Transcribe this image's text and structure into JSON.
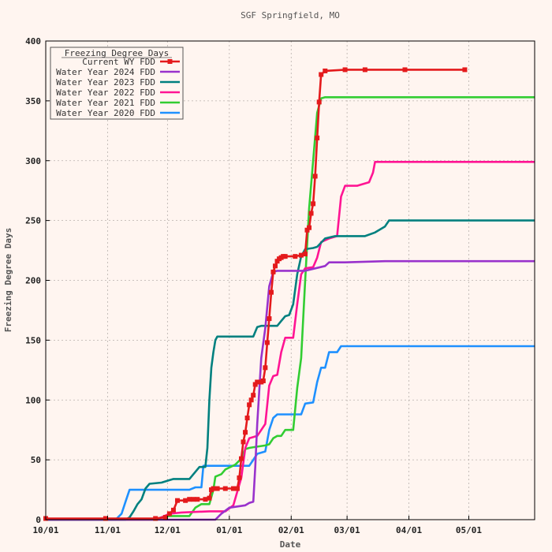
{
  "chart_data": {
    "type": "line",
    "title": "SGF Springfield, MO",
    "xlabel": "Date",
    "ylabel": "Freezing Degree Days",
    "ylim": [
      0,
      400
    ],
    "yticks": [
      "0",
      "50",
      "100",
      "150",
      "200",
      "250",
      "300",
      "350",
      "400"
    ],
    "xlim": [
      "10/01",
      "12/31 of Jun end"
    ],
    "x_unit": "date (water year day, 10/01 = day 0)",
    "xticks": [
      {
        "label": "10/01",
        "day": 0
      },
      {
        "label": "11/01",
        "day": 31
      },
      {
        "label": "12/01",
        "day": 61
      },
      {
        "label": "01/01",
        "day": 92
      },
      {
        "label": "02/01",
        "day": 123
      },
      {
        "label": "03/01",
        "day": 151
      },
      {
        "label": "04/01",
        "day": 182
      },
      {
        "label": "05/01",
        "day": 212
      }
    ],
    "x_max_day": 245,
    "grid": true,
    "legend": {
      "title": "Freezing Degree Days",
      "placement": "top-left"
    },
    "series": [
      {
        "name": "Current WY FDD",
        "color": "#e41a1c",
        "markers": true,
        "points": [
          [
            0,
            1
          ],
          [
            30,
            1
          ],
          [
            55,
            1
          ],
          [
            60,
            2
          ],
          [
            62,
            5
          ],
          [
            64,
            8
          ],
          [
            66,
            16
          ],
          [
            70,
            16
          ],
          [
            72,
            17
          ],
          [
            74,
            17
          ],
          [
            76,
            17
          ],
          [
            80,
            17
          ],
          [
            82,
            18
          ],
          [
            83,
            25
          ],
          [
            84,
            26
          ],
          [
            86,
            26
          ],
          [
            90,
            26
          ],
          [
            94,
            26
          ],
          [
            96,
            26
          ],
          [
            97,
            35
          ],
          [
            98,
            51
          ],
          [
            99,
            65
          ],
          [
            100,
            73
          ],
          [
            101,
            85
          ],
          [
            102,
            96
          ],
          [
            103,
            100
          ],
          [
            104,
            104
          ],
          [
            105,
            113
          ],
          [
            106,
            115
          ],
          [
            107,
            115
          ],
          [
            108,
            115
          ],
          [
            109,
            116
          ],
          [
            110,
            127
          ],
          [
            111,
            148
          ],
          [
            112,
            168
          ],
          [
            113,
            190
          ],
          [
            114,
            207
          ],
          [
            115,
            212
          ],
          [
            116,
            216
          ],
          [
            117,
            218
          ],
          [
            118,
            219
          ],
          [
            119,
            220
          ],
          [
            120,
            220
          ],
          [
            125,
            220
          ],
          [
            128,
            221
          ],
          [
            130,
            222
          ],
          [
            131,
            242
          ],
          [
            132,
            244
          ],
          [
            133,
            256
          ],
          [
            134,
            264
          ],
          [
            135,
            287
          ],
          [
            136,
            319
          ],
          [
            137,
            349
          ],
          [
            138,
            372
          ],
          [
            140,
            375
          ],
          [
            150,
            376
          ],
          [
            160,
            376
          ],
          [
            180,
            376
          ],
          [
            210,
            376
          ]
        ]
      },
      {
        "name": "Water Year 2024 FDD",
        "color": "#9932cc",
        "points": [
          [
            0,
            0
          ],
          [
            55,
            0
          ],
          [
            62,
            0
          ],
          [
            85,
            0
          ],
          [
            88,
            5
          ],
          [
            92,
            10
          ],
          [
            100,
            12
          ],
          [
            102,
            14
          ],
          [
            104,
            15
          ],
          [
            105,
            44
          ],
          [
            106,
            80
          ],
          [
            108,
            135
          ],
          [
            110,
            160
          ],
          [
            112,
            195
          ],
          [
            114,
            207
          ],
          [
            116,
            208
          ],
          [
            120,
            208
          ],
          [
            130,
            208
          ],
          [
            140,
            212
          ],
          [
            142,
            215
          ],
          [
            150,
            215
          ],
          [
            170,
            216
          ],
          [
            200,
            216
          ],
          [
            245,
            216
          ]
        ]
      },
      {
        "name": "Water Year 2023 FDD",
        "color": "#00807f",
        "points": [
          [
            0,
            0
          ],
          [
            40,
            0
          ],
          [
            42,
            2
          ],
          [
            44,
            7
          ],
          [
            46,
            13
          ],
          [
            48,
            17
          ],
          [
            50,
            26
          ],
          [
            52,
            30
          ],
          [
            58,
            31
          ],
          [
            62,
            33
          ],
          [
            64,
            34
          ],
          [
            72,
            34
          ],
          [
            75,
            40
          ],
          [
            77,
            44
          ],
          [
            80,
            44
          ],
          [
            81,
            60
          ],
          [
            82,
            100
          ],
          [
            83,
            127
          ],
          [
            84,
            140
          ],
          [
            85,
            150
          ],
          [
            86,
            153
          ],
          [
            92,
            153
          ],
          [
            104,
            153
          ],
          [
            106,
            161
          ],
          [
            108,
            162
          ],
          [
            116,
            162
          ],
          [
            118,
            166
          ],
          [
            120,
            170
          ],
          [
            122,
            171
          ],
          [
            124,
            180
          ],
          [
            126,
            205
          ],
          [
            128,
            220
          ],
          [
            130,
            226
          ],
          [
            134,
            227
          ],
          [
            136,
            228
          ],
          [
            140,
            235
          ],
          [
            145,
            237
          ],
          [
            160,
            237
          ],
          [
            165,
            240
          ],
          [
            170,
            245
          ],
          [
            172,
            250
          ],
          [
            200,
            250
          ],
          [
            245,
            250
          ]
        ]
      },
      {
        "name": "Water Year 2022 FDD",
        "color": "#ff1493",
        "points": [
          [
            0,
            0
          ],
          [
            55,
            0
          ],
          [
            58,
            2
          ],
          [
            62,
            5
          ],
          [
            68,
            6
          ],
          [
            82,
            7
          ],
          [
            90,
            7
          ],
          [
            94,
            12
          ],
          [
            98,
            35
          ],
          [
            100,
            60
          ],
          [
            102,
            68
          ],
          [
            106,
            70
          ],
          [
            110,
            80
          ],
          [
            112,
            112
          ],
          [
            114,
            120
          ],
          [
            116,
            121
          ],
          [
            118,
            140
          ],
          [
            120,
            152
          ],
          [
            124,
            152
          ],
          [
            126,
            180
          ],
          [
            128,
            205
          ],
          [
            130,
            210
          ],
          [
            134,
            211
          ],
          [
            136,
            219
          ],
          [
            138,
            232
          ],
          [
            142,
            235
          ],
          [
            146,
            237
          ],
          [
            148,
            270
          ],
          [
            150,
            279
          ],
          [
            156,
            279
          ],
          [
            158,
            280
          ],
          [
            162,
            282
          ],
          [
            164,
            290
          ],
          [
            165,
            299
          ],
          [
            180,
            299
          ],
          [
            200,
            299
          ],
          [
            245,
            299
          ]
        ]
      },
      {
        "name": "Water Year 2021 FDD",
        "color": "#32cd32",
        "points": [
          [
            0,
            0
          ],
          [
            55,
            0
          ],
          [
            58,
            2
          ],
          [
            62,
            3
          ],
          [
            72,
            3
          ],
          [
            75,
            10
          ],
          [
            78,
            13
          ],
          [
            82,
            13
          ],
          [
            84,
            25
          ],
          [
            85,
            36
          ],
          [
            88,
            38
          ],
          [
            90,
            42
          ],
          [
            95,
            46
          ],
          [
            98,
            51
          ],
          [
            100,
            59
          ],
          [
            102,
            60
          ],
          [
            106,
            61
          ],
          [
            110,
            62
          ],
          [
            112,
            63
          ],
          [
            114,
            68
          ],
          [
            116,
            70
          ],
          [
            118,
            70
          ],
          [
            120,
            75
          ],
          [
            124,
            75
          ],
          [
            126,
            110
          ],
          [
            128,
            135
          ],
          [
            130,
            200
          ],
          [
            132,
            260
          ],
          [
            134,
            300
          ],
          [
            136,
            340
          ],
          [
            138,
            352
          ],
          [
            140,
            353
          ],
          [
            160,
            353
          ],
          [
            200,
            353
          ],
          [
            245,
            353
          ]
        ]
      },
      {
        "name": "Water Year 2020 FDD",
        "color": "#1e90ff",
        "points": [
          [
            0,
            0
          ],
          [
            35,
            0
          ],
          [
            38,
            5
          ],
          [
            40,
            15
          ],
          [
            42,
            25
          ],
          [
            45,
            25
          ],
          [
            72,
            25
          ],
          [
            75,
            27
          ],
          [
            78,
            27
          ],
          [
            79,
            45
          ],
          [
            85,
            45
          ],
          [
            90,
            45
          ],
          [
            102,
            45
          ],
          [
            104,
            50
          ],
          [
            106,
            55
          ],
          [
            108,
            56
          ],
          [
            110,
            57
          ],
          [
            112,
            75
          ],
          [
            114,
            85
          ],
          [
            116,
            88
          ],
          [
            120,
            88
          ],
          [
            122,
            88
          ],
          [
            128,
            88
          ],
          [
            130,
            97
          ],
          [
            134,
            98
          ],
          [
            136,
            115
          ],
          [
            138,
            127
          ],
          [
            140,
            127
          ],
          [
            142,
            140
          ],
          [
            146,
            140
          ],
          [
            148,
            145
          ],
          [
            160,
            145
          ],
          [
            200,
            145
          ],
          [
            245,
            145
          ]
        ]
      }
    ]
  }
}
